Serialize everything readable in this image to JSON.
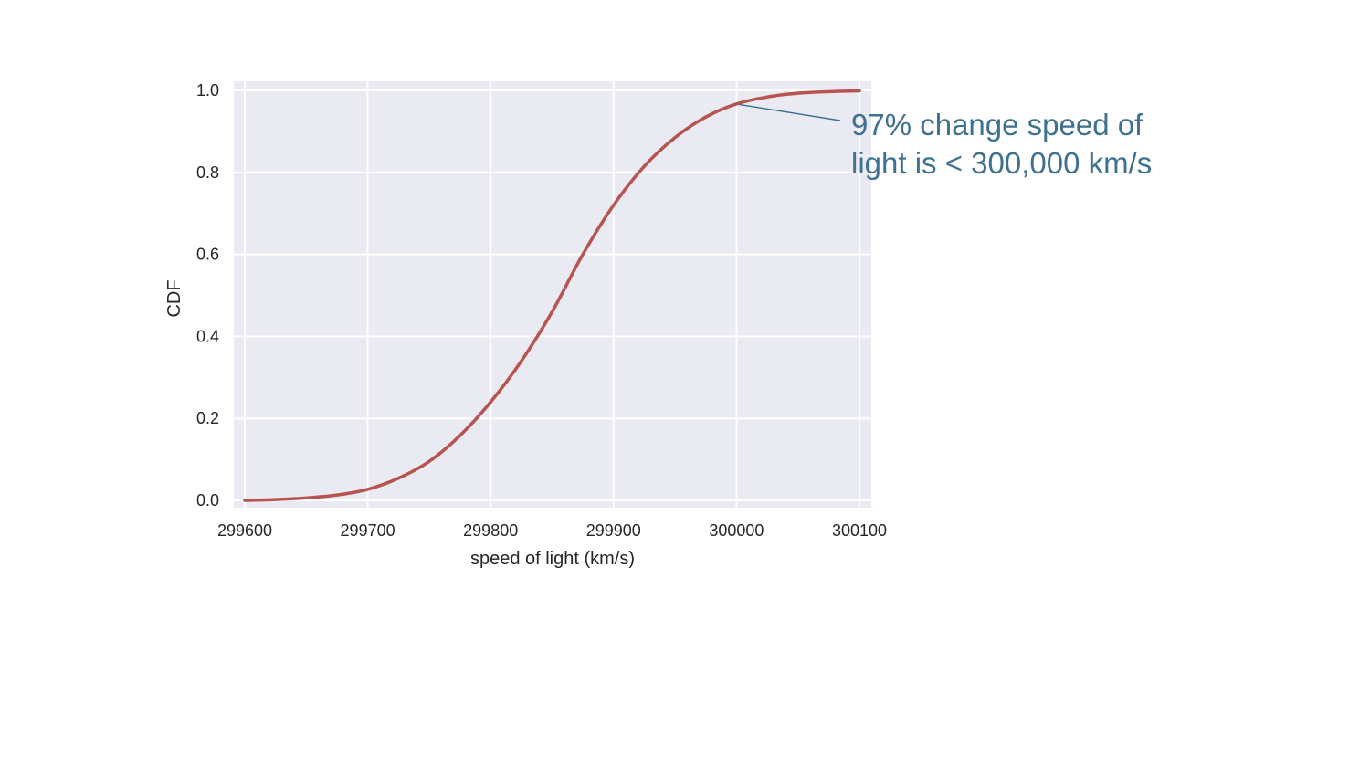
{
  "chart_data": {
    "type": "line",
    "title": "",
    "xlabel": "speed of light (km/s)",
    "ylabel": "CDF",
    "xlim": [
      299600,
      300100
    ],
    "ylim": [
      0.0,
      1.0
    ],
    "xticks": [
      299600,
      299700,
      299800,
      299900,
      300000,
      300100
    ],
    "xtick_labels": [
      "299600",
      "299700",
      "299800",
      "299900",
      "300000",
      "300100"
    ],
    "yticks": [
      0.0,
      0.2,
      0.4,
      0.6,
      0.8,
      1.0
    ],
    "ytick_labels": [
      "0.0",
      "0.2",
      "0.4",
      "0.6",
      "0.8",
      "1.0"
    ],
    "grid": true,
    "background": "#eaeaf2",
    "series": [
      {
        "color": "#b85450",
        "x": [
          299600,
          299625,
          299650,
          299675,
          299700,
          299725,
          299750,
          299775,
          299800,
          299825,
          299850,
          299875,
          299900,
          299925,
          299950,
          299975,
          300000,
          300025,
          300050,
          300075,
          300100
        ],
        "y": [
          0.0,
          0.002,
          0.006,
          0.013,
          0.027,
          0.054,
          0.095,
          0.158,
          0.24,
          0.34,
          0.46,
          0.6,
          0.72,
          0.815,
          0.885,
          0.935,
          0.967,
          0.984,
          0.993,
          0.997,
          0.999
        ]
      }
    ],
    "annotations": [
      {
        "lines": [
          "97% change speed of",
          "light is < 300,000 km/s"
        ],
        "point": {
          "x": 300000,
          "y": 0.967
        },
        "color": "#3e7191"
      }
    ]
  }
}
